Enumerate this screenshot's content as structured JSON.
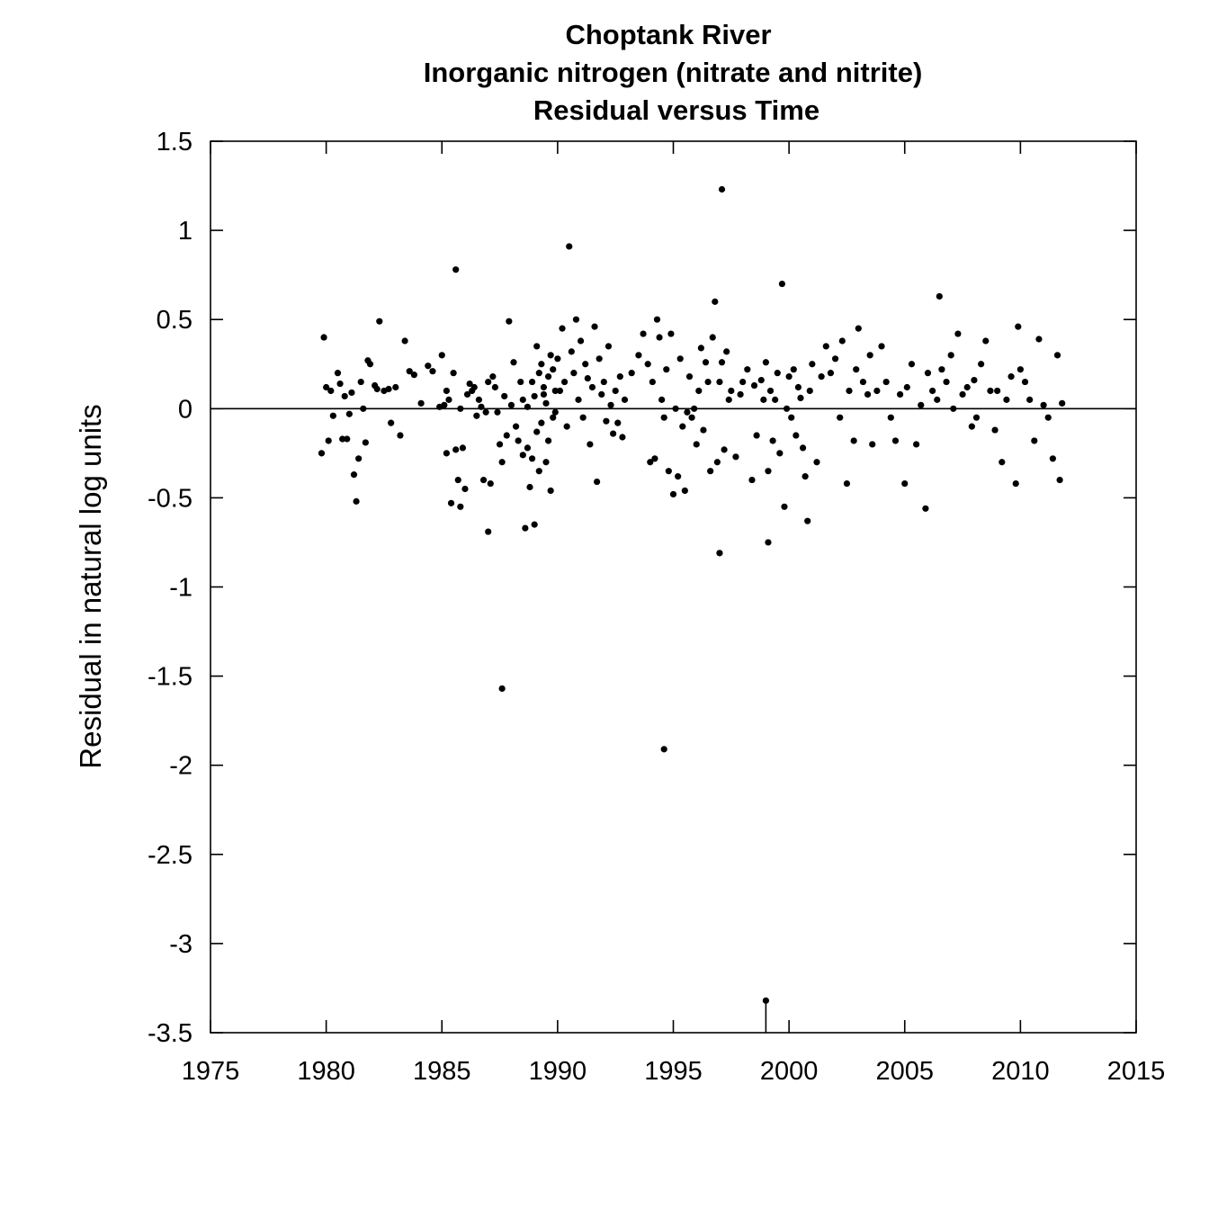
{
  "chart_data": {
    "type": "scatter",
    "title_lines": [
      "Choptank River",
      "Inorganic nitrogen (nitrate and nitrite)",
      "Residual versus Time"
    ],
    "xlabel": "",
    "ylabel": "Residual in natural log units",
    "xlim": [
      1975,
      2015
    ],
    "ylim": [
      -3.5,
      1.5
    ],
    "x_ticks": [
      1975,
      1980,
      1985,
      1990,
      1995,
      2000,
      2005,
      2010,
      2015
    ],
    "y_ticks": [
      1.5,
      1,
      0.5,
      0,
      -0.5,
      -1,
      -1.5,
      -2,
      -2.5,
      -3,
      -3.5
    ],
    "x_tick_labels": [
      "1975",
      "1980",
      "1985",
      "1990",
      "1995",
      "2000",
      "2005",
      "2010",
      "2015"
    ],
    "y_tick_labels": [
      "1.5",
      "1",
      "0.5",
      "0",
      "-0.5",
      "-1",
      "-1.5",
      "-2",
      "-2.5",
      "-3",
      "-3.5"
    ],
    "reference_line_y": 0,
    "grid": false,
    "point_color": "#000000",
    "notes": [
      "censored point at 1999.0 drawn with a vertical line down to the axis"
    ],
    "points": [
      [
        1979.9,
        0.4
      ],
      [
        1979.8,
        -0.25
      ],
      [
        1980.0,
        0.12
      ],
      [
        1980.1,
        -0.18
      ],
      [
        1980.2,
        0.1
      ],
      [
        1980.3,
        -0.04
      ],
      [
        1980.5,
        0.2
      ],
      [
        1980.6,
        0.14
      ],
      [
        1980.7,
        -0.17
      ],
      [
        1980.8,
        0.07
      ],
      [
        1980.9,
        -0.17
      ],
      [
        1981.0,
        -0.03
      ],
      [
        1981.1,
        0.09
      ],
      [
        1981.2,
        -0.37
      ],
      [
        1981.3,
        -0.52
      ],
      [
        1981.4,
        -0.28
      ],
      [
        1981.5,
        0.15
      ],
      [
        1981.6,
        0.0
      ],
      [
        1981.7,
        -0.19
      ],
      [
        1981.8,
        0.27
      ],
      [
        1981.9,
        0.25
      ],
      [
        1982.1,
        0.13
      ],
      [
        1982.2,
        0.11
      ],
      [
        1982.3,
        0.49
      ],
      [
        1982.5,
        0.1
      ],
      [
        1982.7,
        0.11
      ],
      [
        1982.8,
        -0.08
      ],
      [
        1983.0,
        0.12
      ],
      [
        1983.2,
        -0.15
      ],
      [
        1983.4,
        0.38
      ],
      [
        1983.6,
        0.21
      ],
      [
        1983.8,
        0.19
      ],
      [
        1984.1,
        0.03
      ],
      [
        1984.4,
        0.24
      ],
      [
        1984.6,
        0.21
      ],
      [
        1984.9,
        0.01
      ],
      [
        1985.0,
        0.3
      ],
      [
        1985.1,
        0.02
      ],
      [
        1985.2,
        0.1
      ],
      [
        1985.2,
        -0.25
      ],
      [
        1985.3,
        0.05
      ],
      [
        1985.4,
        -0.53
      ],
      [
        1985.5,
        0.2
      ],
      [
        1985.6,
        0.78
      ],
      [
        1985.6,
        -0.23
      ],
      [
        1985.7,
        -0.4
      ],
      [
        1985.8,
        0.0
      ],
      [
        1985.8,
        -0.55
      ],
      [
        1985.9,
        -0.22
      ],
      [
        1986.0,
        -0.45
      ],
      [
        1986.1,
        0.08
      ],
      [
        1986.2,
        0.14
      ],
      [
        1986.3,
        0.1
      ],
      [
        1986.4,
        0.12
      ],
      [
        1986.5,
        -0.04
      ],
      [
        1986.6,
        0.05
      ],
      [
        1986.7,
        0.01
      ],
      [
        1986.8,
        -0.4
      ],
      [
        1986.9,
        -0.02
      ],
      [
        1987.0,
        0.15
      ],
      [
        1987.0,
        -0.69
      ],
      [
        1987.1,
        -0.42
      ],
      [
        1987.2,
        0.18
      ],
      [
        1987.3,
        0.12
      ],
      [
        1987.4,
        -0.02
      ],
      [
        1987.5,
        -0.2
      ],
      [
        1987.6,
        -0.3
      ],
      [
        1987.7,
        0.07
      ],
      [
        1987.8,
        -0.15
      ],
      [
        1987.9,
        0.49
      ],
      [
        1987.6,
        -1.57
      ],
      [
        1988.0,
        0.02
      ],
      [
        1988.1,
        0.26
      ],
      [
        1988.2,
        -0.1
      ],
      [
        1988.3,
        -0.18
      ],
      [
        1988.4,
        0.15
      ],
      [
        1988.5,
        -0.26
      ],
      [
        1988.6,
        -0.67
      ],
      [
        1988.7,
        0.01
      ],
      [
        1988.8,
        -0.44
      ],
      [
        1988.9,
        -0.28
      ],
      [
        1989.0,
        0.07
      ],
      [
        1989.1,
        -0.13
      ],
      [
        1989.2,
        0.2
      ],
      [
        1989.3,
        -0.08
      ],
      [
        1989.4,
        0.12
      ],
      [
        1989.5,
        0.03
      ],
      [
        1989.6,
        -0.18
      ],
      [
        1989.7,
        0.3
      ],
      [
        1989.8,
        -0.05
      ],
      [
        1989.9,
        0.1
      ],
      [
        1988.5,
        0.05
      ],
      [
        1988.7,
        -0.22
      ],
      [
        1988.9,
        0.15
      ],
      [
        1989.0,
        -0.65
      ],
      [
        1989.1,
        0.35
      ],
      [
        1989.2,
        -0.35
      ],
      [
        1989.3,
        0.25
      ],
      [
        1989.4,
        0.08
      ],
      [
        1989.5,
        -0.3
      ],
      [
        1989.6,
        0.18
      ],
      [
        1989.7,
        -0.46
      ],
      [
        1989.8,
        0.22
      ],
      [
        1989.9,
        -0.02
      ],
      [
        1990.0,
        0.28
      ],
      [
        1990.1,
        0.1
      ],
      [
        1990.2,
        0.45
      ],
      [
        1990.3,
        0.15
      ],
      [
        1990.4,
        -0.1
      ],
      [
        1990.5,
        0.91
      ],
      [
        1990.6,
        0.32
      ],
      [
        1990.7,
        0.2
      ],
      [
        1990.8,
        0.5
      ],
      [
        1990.9,
        0.05
      ],
      [
        1991.0,
        0.38
      ],
      [
        1991.1,
        -0.05
      ],
      [
        1991.2,
        0.25
      ],
      [
        1991.3,
        0.17
      ],
      [
        1991.4,
        -0.2
      ],
      [
        1991.5,
        0.12
      ],
      [
        1991.6,
        0.46
      ],
      [
        1991.7,
        -0.41
      ],
      [
        1991.8,
        0.28
      ],
      [
        1991.9,
        0.08
      ],
      [
        1992.0,
        0.15
      ],
      [
        1992.1,
        -0.07
      ],
      [
        1992.2,
        0.35
      ],
      [
        1992.3,
        0.02
      ],
      [
        1992.4,
        -0.14
      ],
      [
        1992.5,
        0.1
      ],
      [
        1992.6,
        -0.08
      ],
      [
        1992.7,
        0.18
      ],
      [
        1992.8,
        -0.16
      ],
      [
        1992.9,
        0.05
      ],
      [
        1993.2,
        0.2
      ],
      [
        1993.5,
        0.3
      ],
      [
        1993.7,
        0.42
      ],
      [
        1993.9,
        0.25
      ],
      [
        1994.0,
        -0.3
      ],
      [
        1994.1,
        0.15
      ],
      [
        1994.2,
        -0.28
      ],
      [
        1994.3,
        0.5
      ],
      [
        1994.4,
        0.4
      ],
      [
        1994.5,
        0.05
      ],
      [
        1994.6,
        -0.05
      ],
      [
        1994.7,
        0.22
      ],
      [
        1994.8,
        -0.35
      ],
      [
        1994.9,
        0.42
      ],
      [
        1994.6,
        -1.91
      ],
      [
        1995.0,
        -0.48
      ],
      [
        1995.1,
        0.0
      ],
      [
        1995.2,
        -0.38
      ],
      [
        1995.3,
        0.28
      ],
      [
        1995.4,
        -0.1
      ],
      [
        1995.5,
        -0.46
      ],
      [
        1995.6,
        -0.02
      ],
      [
        1995.7,
        0.18
      ],
      [
        1995.8,
        -0.05
      ],
      [
        1995.9,
        0.0
      ],
      [
        1996.0,
        -0.2
      ],
      [
        1996.1,
        0.1
      ],
      [
        1996.2,
        0.34
      ],
      [
        1996.3,
        -0.12
      ],
      [
        1996.4,
        0.26
      ],
      [
        1996.5,
        0.15
      ],
      [
        1996.6,
        -0.35
      ],
      [
        1996.7,
        0.4
      ],
      [
        1996.8,
        0.6
      ],
      [
        1996.9,
        -0.3
      ],
      [
        1997.0,
        0.15
      ],
      [
        1997.1,
        0.26
      ],
      [
        1997.2,
        -0.23
      ],
      [
        1997.3,
        0.32
      ],
      [
        1997.4,
        0.05
      ],
      [
        1997.1,
        1.23
      ],
      [
        1997.0,
        -0.81
      ],
      [
        1997.5,
        0.1
      ],
      [
        1997.7,
        -0.27
      ],
      [
        1997.9,
        0.08
      ],
      [
        1998.0,
        0.15
      ],
      [
        1998.2,
        0.22
      ],
      [
        1998.4,
        -0.4
      ],
      [
        1998.5,
        0.13
      ],
      [
        1998.6,
        -0.15
      ],
      [
        1998.8,
        0.16
      ],
      [
        1998.9,
        0.05
      ],
      [
        1999.0,
        0.26
      ],
      [
        1999.1,
        -0.35
      ],
      [
        1999.2,
        0.1
      ],
      [
        1999.3,
        -0.18
      ],
      [
        1999.4,
        0.05
      ],
      [
        1999.5,
        0.2
      ],
      [
        1999.6,
        -0.25
      ],
      [
        1999.7,
        0.7
      ],
      [
        1999.8,
        -0.55
      ],
      [
        1999.9,
        0.0
      ],
      [
        1999.1,
        -0.75
      ],
      [
        2000.0,
        0.18
      ],
      [
        2000.1,
        -0.05
      ],
      [
        2000.2,
        0.22
      ],
      [
        2000.3,
        -0.15
      ],
      [
        2000.4,
        0.12
      ],
      [
        2000.5,
        0.06
      ],
      [
        2000.6,
        -0.22
      ],
      [
        2000.7,
        -0.38
      ],
      [
        2000.8,
        -0.63
      ],
      [
        2000.9,
        0.1
      ],
      [
        2001.0,
        0.25
      ],
      [
        2001.2,
        -0.3
      ],
      [
        2001.4,
        0.18
      ],
      [
        2001.6,
        0.35
      ],
      [
        2001.8,
        0.2
      ],
      [
        2002.0,
        0.28
      ],
      [
        2002.2,
        -0.05
      ],
      [
        2002.3,
        0.38
      ],
      [
        2002.5,
        -0.42
      ],
      [
        2002.6,
        0.1
      ],
      [
        2002.8,
        -0.18
      ],
      [
        2002.9,
        0.22
      ],
      [
        2003.0,
        0.45
      ],
      [
        2003.2,
        0.15
      ],
      [
        2003.4,
        0.08
      ],
      [
        2003.5,
        0.3
      ],
      [
        2003.6,
        -0.2
      ],
      [
        2003.8,
        0.1
      ],
      [
        2004.0,
        0.35
      ],
      [
        2004.2,
        0.15
      ],
      [
        2004.4,
        -0.05
      ],
      [
        2004.6,
        -0.18
      ],
      [
        2004.8,
        0.08
      ],
      [
        2005.0,
        -0.42
      ],
      [
        2005.1,
        0.12
      ],
      [
        2005.3,
        0.25
      ],
      [
        2005.5,
        -0.2
      ],
      [
        2005.7,
        0.02
      ],
      [
        2005.9,
        -0.56
      ],
      [
        2006.0,
        0.2
      ],
      [
        2006.2,
        0.1
      ],
      [
        2006.4,
        0.05
      ],
      [
        2006.5,
        0.63
      ],
      [
        2006.6,
        0.22
      ],
      [
        2006.8,
        0.15
      ],
      [
        2007.0,
        0.3
      ],
      [
        2007.1,
        0.0
      ],
      [
        2007.3,
        0.42
      ],
      [
        2007.5,
        0.08
      ],
      [
        2007.7,
        0.12
      ],
      [
        2007.9,
        -0.1
      ],
      [
        2008.0,
        0.16
      ],
      [
        2008.1,
        -0.05
      ],
      [
        2008.3,
        0.25
      ],
      [
        2008.5,
        0.38
      ],
      [
        2008.7,
        0.1
      ],
      [
        2008.9,
        -0.12
      ],
      [
        2009.0,
        0.1
      ],
      [
        2009.2,
        -0.3
      ],
      [
        2009.4,
        0.05
      ],
      [
        2009.6,
        0.18
      ],
      [
        2009.8,
        -0.42
      ],
      [
        2009.9,
        0.46
      ],
      [
        2010.0,
        0.22
      ],
      [
        2010.2,
        0.15
      ],
      [
        2010.4,
        0.05
      ],
      [
        2010.6,
        -0.18
      ],
      [
        2010.8,
        0.39
      ],
      [
        2011.0,
        0.02
      ],
      [
        2011.2,
        -0.05
      ],
      [
        2011.4,
        -0.28
      ],
      [
        2011.6,
        0.3
      ],
      [
        2011.7,
        -0.4
      ],
      [
        2011.8,
        0.03
      ]
    ],
    "censored_points": [
      [
        1999.0,
        -3.32
      ]
    ]
  }
}
